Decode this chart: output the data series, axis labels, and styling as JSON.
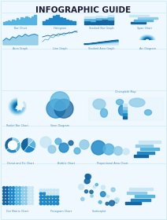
{
  "title": "INFOGRAPHIC GUIDE",
  "bg_color": "#f0f8ff",
  "blue_dark": "#1565a0",
  "blue_mid": "#1e88c8",
  "blue_light": "#56b4e0",
  "blue_pale": "#90cce8",
  "blue_very_pale": "#c8e6f4",
  "blue_bg": "#e8f4fb",
  "text_color": "#1a5276",
  "label_color": "#4a90b8"
}
